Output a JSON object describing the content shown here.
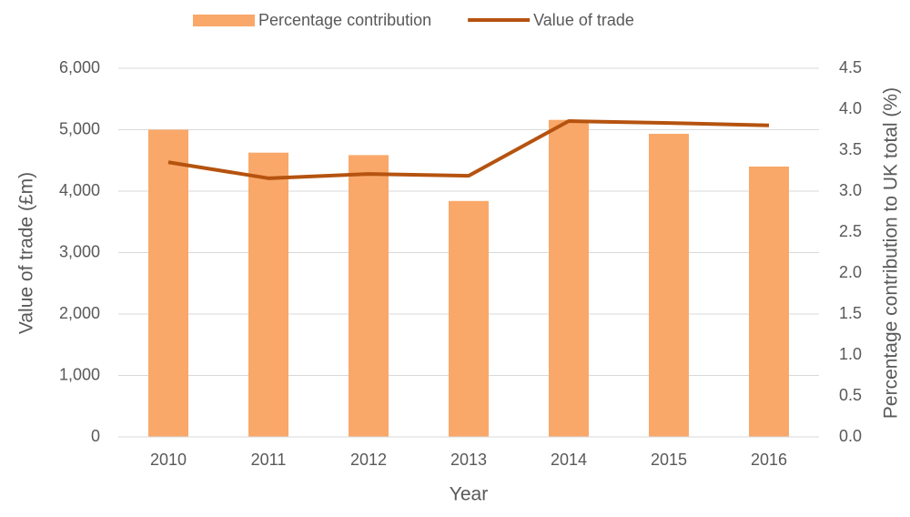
{
  "chart_data": {
    "type": "bar_line",
    "xlabel": "Year",
    "ylabel": "Value of trade (£m)",
    "y2label": "Percentage contribution to UK total (%)",
    "categories": [
      "2010",
      "2011",
      "2012",
      "2013",
      "2014",
      "2015",
      "2016"
    ],
    "series": [
      {
        "name": "Percentage contribution",
        "type": "bar",
        "axis": "y2",
        "color": "#f9a86a",
        "values": [
          3.75,
          3.47,
          3.44,
          2.88,
          3.87,
          3.7,
          3.3
        ]
      },
      {
        "name": "Value of trade",
        "type": "line",
        "axis": "y",
        "color": "#b5530f",
        "values": [
          4470,
          4210,
          4280,
          4250,
          5140,
          5110,
          5070
        ]
      }
    ],
    "ylim": [
      0,
      6000
    ],
    "yticks": [
      0,
      {
        "value": 1000,
        "label": "1,000"
      },
      {
        "value": 2000,
        "label": "2,000"
      },
      {
        "value": 3000,
        "label": "3,000"
      },
      {
        "value": 4000,
        "label": "4,000"
      },
      {
        "value": 5000,
        "label": "5,000"
      },
      {
        "value": 6000,
        "label": "6,000"
      }
    ],
    "y2lim": [
      0,
      4.5
    ],
    "y2ticks": [
      {
        "value": 0,
        "label": "0.0"
      },
      0.5,
      {
        "value": 1,
        "label": "1.0"
      },
      1.5,
      {
        "value": 2,
        "label": "2.0"
      },
      2.5,
      {
        "value": 3,
        "label": "3.0"
      },
      3.5,
      {
        "value": 4,
        "label": "4.0"
      },
      4.5
    ],
    "grid": true,
    "legend": "top"
  }
}
